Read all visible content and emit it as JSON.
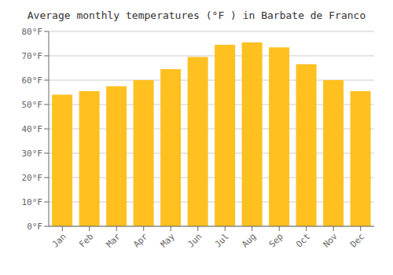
{
  "chart_data": {
    "type": "bar",
    "title": "Average monthly temperatures (°F ) in Barbate de Franco",
    "categories": [
      "Jan",
      "Feb",
      "Mar",
      "Apr",
      "May",
      "Jun",
      "Jul",
      "Aug",
      "Sep",
      "Oct",
      "Nov",
      "Dec"
    ],
    "values": [
      54,
      55.5,
      57.5,
      60,
      64.5,
      69.5,
      74.5,
      75.5,
      73.5,
      66.5,
      60,
      55.5
    ],
    "color": "#FFC020",
    "ylim": [
      0,
      80
    ],
    "yticks": [
      {
        "value": 0,
        "label": "0°F"
      },
      {
        "value": 10,
        "label": "10°F"
      },
      {
        "value": 20,
        "label": "20°F"
      },
      {
        "value": 30,
        "label": "30°F"
      },
      {
        "value": 40,
        "label": "40°F"
      },
      {
        "value": 50,
        "label": "50°F"
      },
      {
        "value": 60,
        "label": "60°F"
      },
      {
        "value": 70,
        "label": "70°F"
      },
      {
        "value": 80,
        "label": "80°F"
      }
    ],
    "grid": true
  }
}
